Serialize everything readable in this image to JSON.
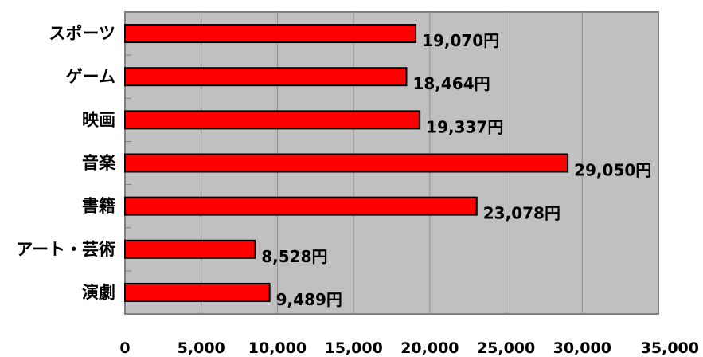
{
  "chart_data": {
    "type": "bar",
    "orientation": "horizontal",
    "categories": [
      "スポーツ",
      "ゲーム",
      "映画",
      "音楽",
      "書籍",
      "アート・芸術",
      "演劇"
    ],
    "values": [
      19070,
      18464,
      19337,
      29050,
      23078,
      8528,
      9489
    ],
    "data_labels": [
      "19,070円",
      "18,464円",
      "19,337円",
      "29,050円",
      "23,078円",
      "8,528円",
      "9,489円"
    ],
    "x_ticks": [
      0,
      5000,
      10000,
      15000,
      20000,
      25000,
      30000,
      35000
    ],
    "x_tick_labels": [
      "0",
      "5,000",
      "10,000",
      "15,000",
      "20,000",
      "25,000",
      "30,000",
      "35,000"
    ],
    "xlim": [
      0,
      35000
    ],
    "grid": true,
    "legend": "none",
    "colors": {
      "bar_fill": "#ff0000",
      "bar_stroke": "#000000",
      "plot_background": "#c0c0c0",
      "gridline": "#8c8c8c",
      "axis": "#808080"
    }
  }
}
